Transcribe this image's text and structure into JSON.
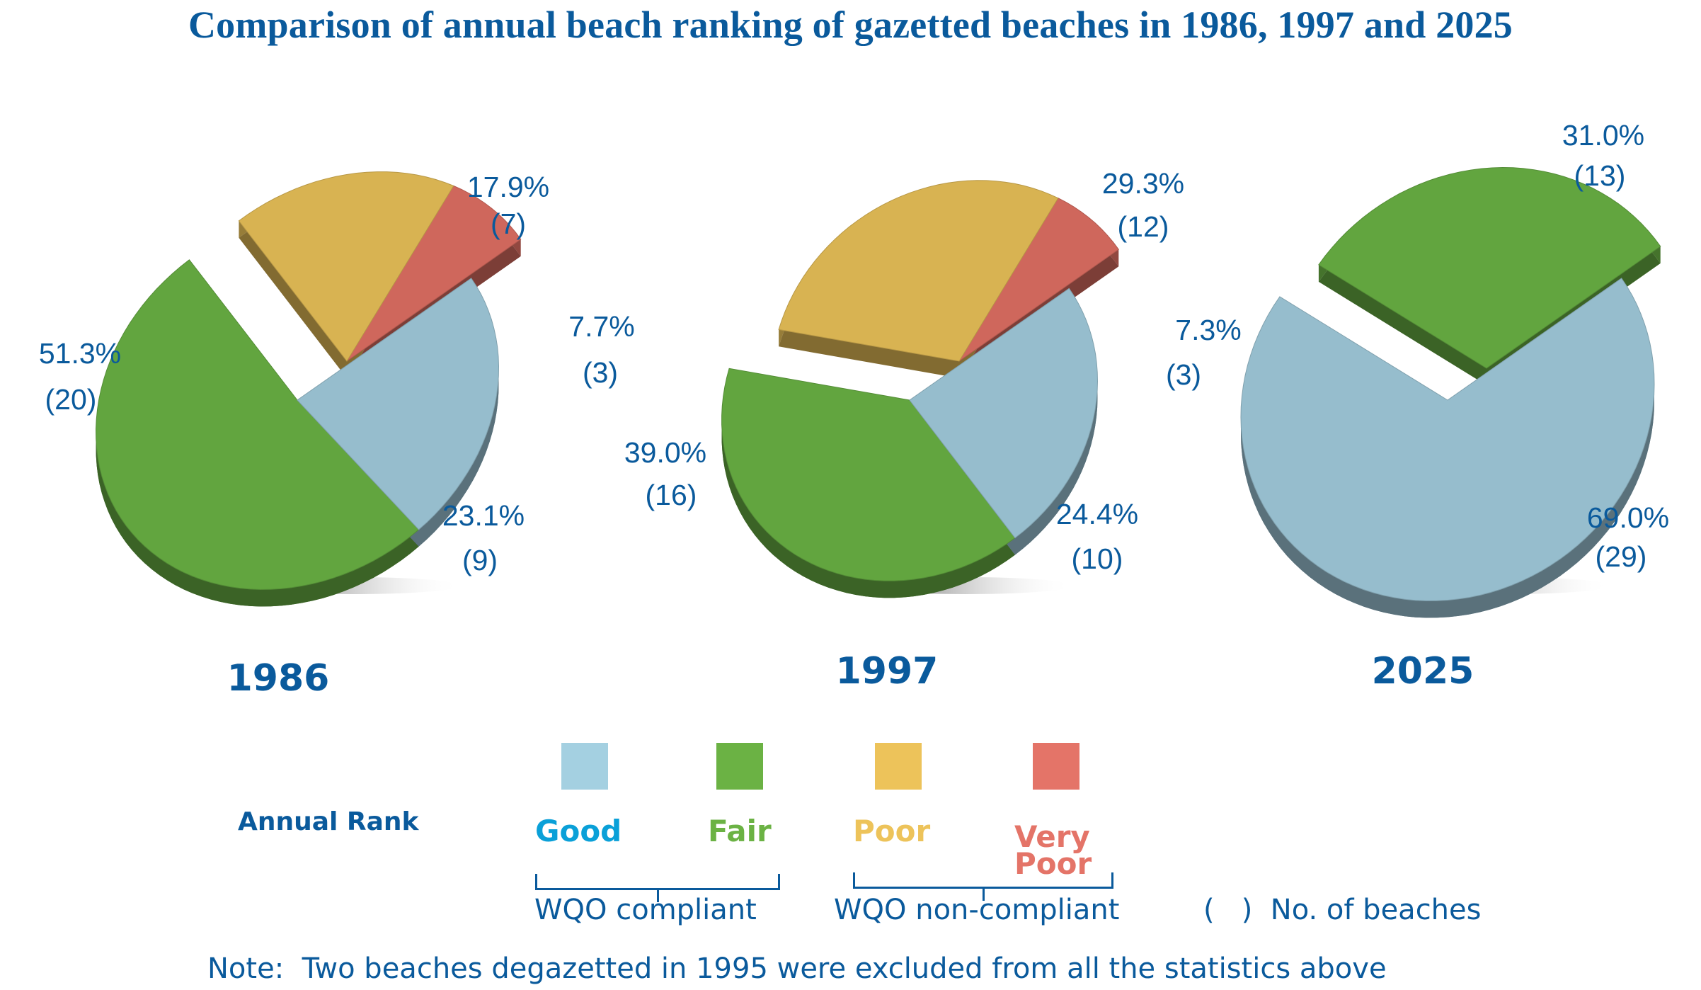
{
  "title": "Comparison of annual beach ranking of gazetted beaches in 1986, 1997 and 2025",
  "chart_data": {
    "type": "pie",
    "title": "Comparison of annual beach ranking of gazetted beaches in 1986, 1997 and 2025",
    "categories": [
      "Good",
      "Fair",
      "Poor",
      "Very Poor"
    ],
    "colors": {
      "Good": "#96bdcd",
      "Fair": "#62a53f",
      "Poor": "#d8b352",
      "Very Poor": "#cf675c"
    },
    "pies": [
      {
        "year": "1986",
        "slices": [
          {
            "category": "Good",
            "percent": 23.1,
            "count": 9,
            "label": "23.1%",
            "count_label": "(9)",
            "exploded": false
          },
          {
            "category": "Fair",
            "percent": 51.3,
            "count": 20,
            "label": "51.3%",
            "count_label": "(20)",
            "exploded": false
          },
          {
            "category": "Poor",
            "percent": 17.9,
            "count": 7,
            "label": "17.9%",
            "count_label": "(7)",
            "exploded": true
          },
          {
            "category": "Very Poor",
            "percent": 7.7,
            "count": 3,
            "label": "7.7%",
            "count_label": "(3)",
            "exploded": true
          }
        ]
      },
      {
        "year": "1997",
        "slices": [
          {
            "category": "Good",
            "percent": 24.4,
            "count": 10,
            "label": "24.4%",
            "count_label": "(10)",
            "exploded": false
          },
          {
            "category": "Fair",
            "percent": 39.0,
            "count": 16,
            "label": "39.0%",
            "count_label": "(16)",
            "exploded": false
          },
          {
            "category": "Poor",
            "percent": 29.3,
            "count": 12,
            "label": "29.3%",
            "count_label": "(12)",
            "exploded": true
          },
          {
            "category": "Very Poor",
            "percent": 7.3,
            "count": 3,
            "label": "7.3%",
            "count_label": "(3)",
            "exploded": true
          }
        ]
      },
      {
        "year": "2025",
        "slices": [
          {
            "category": "Good",
            "percent": 69.0,
            "count": 29,
            "label": "69.0%",
            "count_label": "(29)",
            "exploded": false
          },
          {
            "category": "Fair",
            "percent": 31.0,
            "count": 13,
            "label": "31.0%",
            "count_label": "(13)",
            "exploded": true
          }
        ]
      }
    ],
    "legend": {
      "title": "Annual Rank",
      "placement": "bottom",
      "items": [
        {
          "label": "Good",
          "color": "#a4d0e1",
          "text_color": "#0aa0d8"
        },
        {
          "label": "Fair",
          "color": "#6bb244",
          "text_color": "#6bb244"
        },
        {
          "label": "Poor",
          "color": "#edc35a",
          "text_color": "#edc35a"
        },
        {
          "label": "Very Poor",
          "color": "#e47468",
          "text_color": "#e47468"
        }
      ],
      "groups": [
        {
          "label": "WQO compliant",
          "members": [
            "Good",
            "Fair"
          ]
        },
        {
          "label": "WQO non-compliant",
          "members": [
            "Poor",
            "Very Poor"
          ]
        }
      ],
      "parenthesis_note": "(   )  No. of beaches"
    },
    "note": "Note:  Two beaches degazetted in 1995 were excluded from all the statistics above"
  }
}
